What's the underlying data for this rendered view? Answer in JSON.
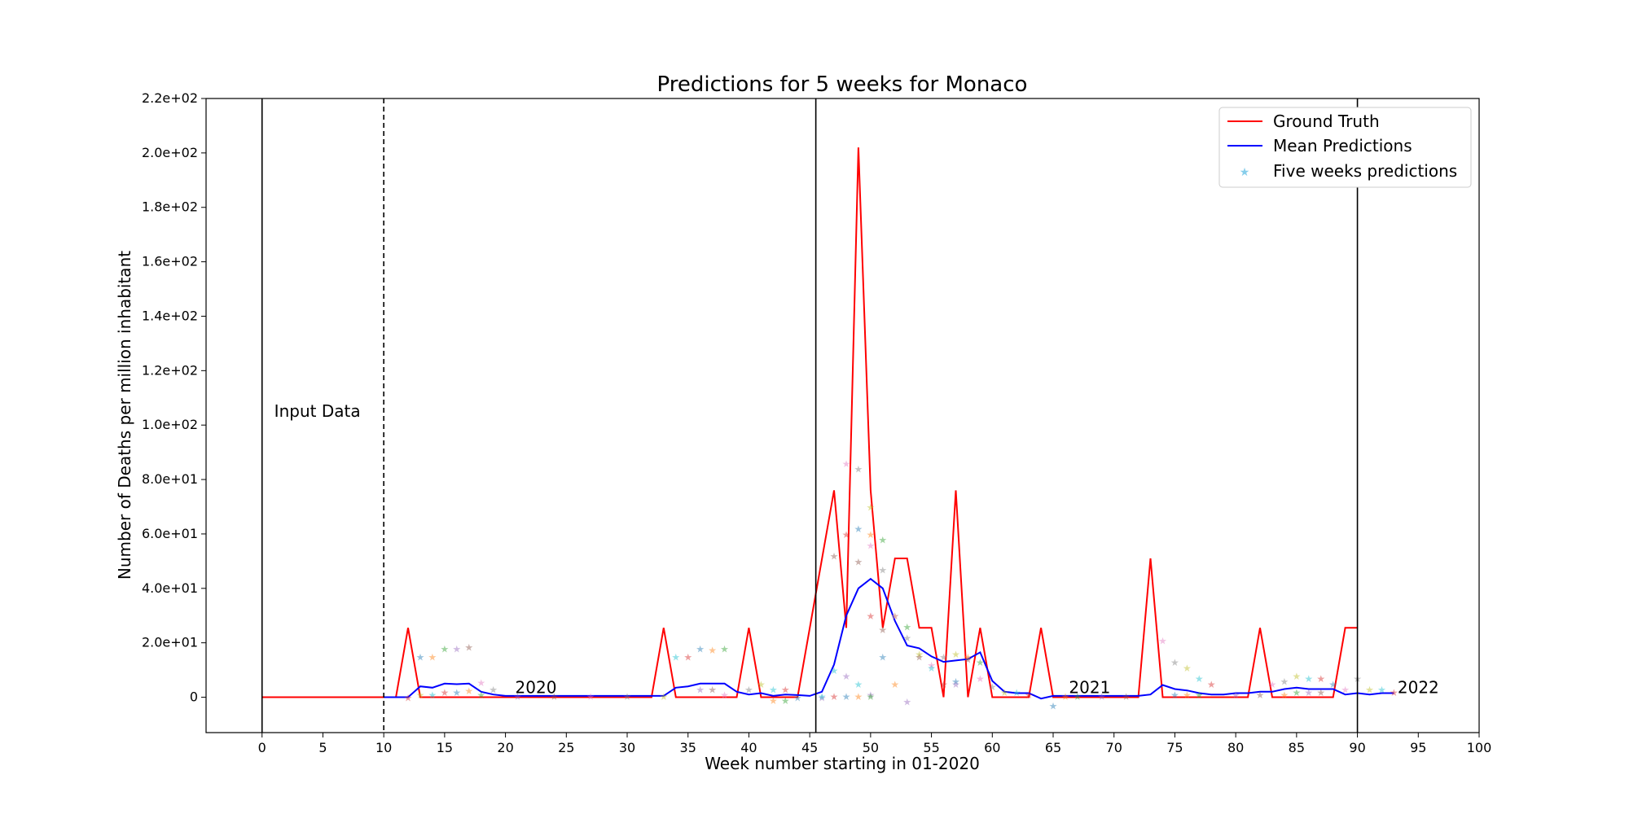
{
  "chart_data": {
    "type": "line",
    "title": "Predictions for 5 weeks for Monaco",
    "xlabel": "Week number starting in 01-2020",
    "ylabel": "Number of Deaths per million inhabitant",
    "xlim": [
      -4.6,
      100
    ],
    "ylim": [
      -13,
      220
    ],
    "x_ticks": [
      0,
      5,
      10,
      15,
      20,
      25,
      30,
      35,
      40,
      45,
      50,
      55,
      60,
      65,
      70,
      75,
      80,
      85,
      90,
      95,
      100
    ],
    "y_ticks": [
      {
        "value": 0,
        "label": "0"
      },
      {
        "value": 20,
        "label": "2.0e+01"
      },
      {
        "value": 40,
        "label": "4.0e+01"
      },
      {
        "value": 60,
        "label": "6.0e+01"
      },
      {
        "value": 80,
        "label": "8.0e+01"
      },
      {
        "value": 100,
        "label": "1.0e+02"
      },
      {
        "value": 120,
        "label": "1.2e+02"
      },
      {
        "value": 140,
        "label": "1.4e+02"
      },
      {
        "value": 160,
        "label": "1.6e+02"
      },
      {
        "value": 180,
        "label": "1.8e+02"
      },
      {
        "value": 200,
        "label": "2.0e+02"
      },
      {
        "value": 220,
        "label": "2.2e+02"
      }
    ],
    "grid": false,
    "legend": "top-right",
    "series": [
      {
        "name": "Ground Truth",
        "color": "#ff0000",
        "style": "line",
        "x": [
          0,
          11,
          12,
          13,
          32,
          33,
          34,
          39,
          40,
          41,
          44,
          47,
          48,
          49,
          50,
          51,
          52,
          53,
          54,
          55,
          56,
          57,
          58,
          59,
          60,
          63,
          64,
          65,
          72,
          73,
          74,
          81,
          82,
          83,
          88,
          89,
          90
        ],
        "y": [
          0,
          0,
          25.5,
          0,
          0,
          25.5,
          0,
          0,
          25.5,
          0,
          0,
          76,
          25.5,
          202,
          76,
          25.5,
          51,
          51,
          25.5,
          25.5,
          0,
          76,
          0,
          25.5,
          0,
          0,
          25.5,
          0,
          0,
          51,
          0,
          0,
          25.5,
          0,
          0,
          25.5,
          25.5
        ]
      },
      {
        "name": "Mean Predictions",
        "color": "#0000ff",
        "style": "line",
        "x": [
          10,
          11,
          12,
          13,
          14,
          15,
          16,
          17,
          18,
          19,
          20,
          21,
          22,
          23,
          24,
          25,
          26,
          27,
          28,
          29,
          30,
          31,
          32,
          33,
          34,
          35,
          36,
          37,
          38,
          39,
          40,
          41,
          42,
          43,
          44,
          45,
          46,
          47,
          48,
          49,
          50,
          51,
          52,
          53,
          54,
          55,
          56,
          57,
          58,
          59,
          60,
          61,
          62,
          63,
          64,
          65,
          66,
          67,
          68,
          69,
          70,
          71,
          72,
          73,
          74,
          75,
          76,
          77,
          78,
          79,
          80,
          81,
          82,
          83,
          84,
          85,
          86,
          87,
          88,
          89,
          90,
          91,
          92,
          93
        ],
        "y": [
          0,
          0,
          0,
          4,
          3.5,
          5,
          4.8,
          5,
          2,
          1,
          0.5,
          0.5,
          0.5,
          0.5,
          0.5,
          0.5,
          0.5,
          0.5,
          0.5,
          0.5,
          0.5,
          0.5,
          0.5,
          0.5,
          3.5,
          4,
          5,
          5,
          5,
          2,
          1,
          1.5,
          0.5,
          1,
          0.8,
          0.5,
          2,
          12,
          30,
          40,
          43.5,
          40,
          28,
          19,
          18,
          15,
          13,
          13.5,
          14,
          16.5,
          6,
          2,
          1.5,
          1.5,
          -0.5,
          0.5,
          0.5,
          0.5,
          0.5,
          0.5,
          0.5,
          0.5,
          0.5,
          1,
          4.5,
          3,
          2.5,
          1.5,
          1,
          1,
          1.5,
          1.5,
          2,
          2,
          3,
          3.5,
          3,
          3,
          3,
          1,
          1.5,
          1,
          1.5,
          1.5
        ]
      },
      {
        "name": "Five weeks predictions",
        "color": "#87ceeb",
        "style": "markers",
        "x": [
          12,
          13,
          14,
          15,
          16,
          17,
          18,
          19,
          13,
          14,
          15,
          16,
          17,
          18,
          21,
          24,
          27,
          30,
          33,
          34,
          35,
          36,
          37,
          38,
          36,
          37,
          38,
          40,
          41,
          42,
          43,
          44,
          42,
          43,
          46,
          47,
          48,
          49,
          50,
          47,
          48,
          49,
          50,
          51,
          48,
          49,
          50,
          51,
          52,
          49,
          50,
          51,
          52,
          53,
          50,
          51,
          52,
          53,
          54,
          46,
          47,
          48,
          49,
          50,
          53,
          54,
          55,
          56,
          57,
          55,
          56,
          57,
          58,
          59,
          57,
          58,
          59,
          60,
          61,
          62,
          63,
          65,
          66,
          67,
          69,
          71,
          74,
          75,
          76,
          77,
          78,
          75,
          76,
          77,
          80,
          82,
          83,
          84,
          85,
          86,
          87,
          88,
          84,
          85,
          86,
          87,
          89,
          90,
          91,
          92,
          93
        ],
        "y": [
          0,
          15,
          15,
          18,
          18,
          18.5,
          5.5,
          3,
          1,
          1,
          2,
          2,
          2.5,
          1,
          0.5,
          0.5,
          0.5,
          0.5,
          0.5,
          15,
          15,
          18,
          17.5,
          18,
          3,
          3,
          1,
          3,
          5,
          3,
          3,
          0,
          -1,
          -1,
          0,
          52,
          86,
          84,
          70,
          10,
          60,
          62,
          60,
          58,
          8,
          50,
          56,
          47,
          30,
          5,
          30,
          15,
          5,
          26,
          1,
          25,
          30,
          22,
          16,
          0.5,
          0.5,
          0.5,
          0.5,
          0.5,
          -1.5,
          15,
          12,
          15,
          16,
          11,
          5,
          6,
          15,
          13,
          5,
          14,
          7,
          4,
          2,
          2,
          1,
          -3,
          0.5,
          0.5,
          0.5,
          0.5,
          21,
          13,
          11,
          7,
          5,
          1,
          1,
          1,
          1,
          1,
          5,
          6,
          8,
          7,
          7,
          5,
          1,
          2,
          2,
          2,
          3,
          7,
          3,
          3,
          2
        ]
      }
    ],
    "vertical_lines": [
      {
        "x": 0,
        "style": "solid"
      },
      {
        "x": 10,
        "style": "dashed"
      },
      {
        "x": 45.5,
        "style": "solid"
      },
      {
        "x": 90,
        "style": "solid"
      }
    ],
    "annotations": [
      {
        "text": "Input Data",
        "x": 1,
        "y": 103
      },
      {
        "text": "2020",
        "x": 20.8,
        "y": 1.5
      },
      {
        "text": "2021",
        "x": 66.3,
        "y": 1.5
      },
      {
        "text": "2022",
        "x": 93.3,
        "y": 1.5
      }
    ]
  }
}
